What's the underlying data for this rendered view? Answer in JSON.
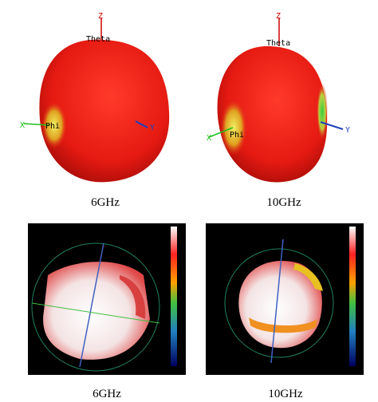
{
  "top_panels": [
    {
      "caption": "6GHz",
      "axes": {
        "z": "Z",
        "theta": "Theta",
        "x": "X",
        "phi": "Phi",
        "y": "Y"
      }
    },
    {
      "caption": "10GHz",
      "axes": {
        "z": "Z",
        "theta": "Theta",
        "x": "X",
        "phi": "Phi",
        "y": "Y"
      }
    }
  ],
  "bottom_panels": [
    {
      "caption": "6GHz"
    },
    {
      "caption": "10GHz"
    }
  ]
}
